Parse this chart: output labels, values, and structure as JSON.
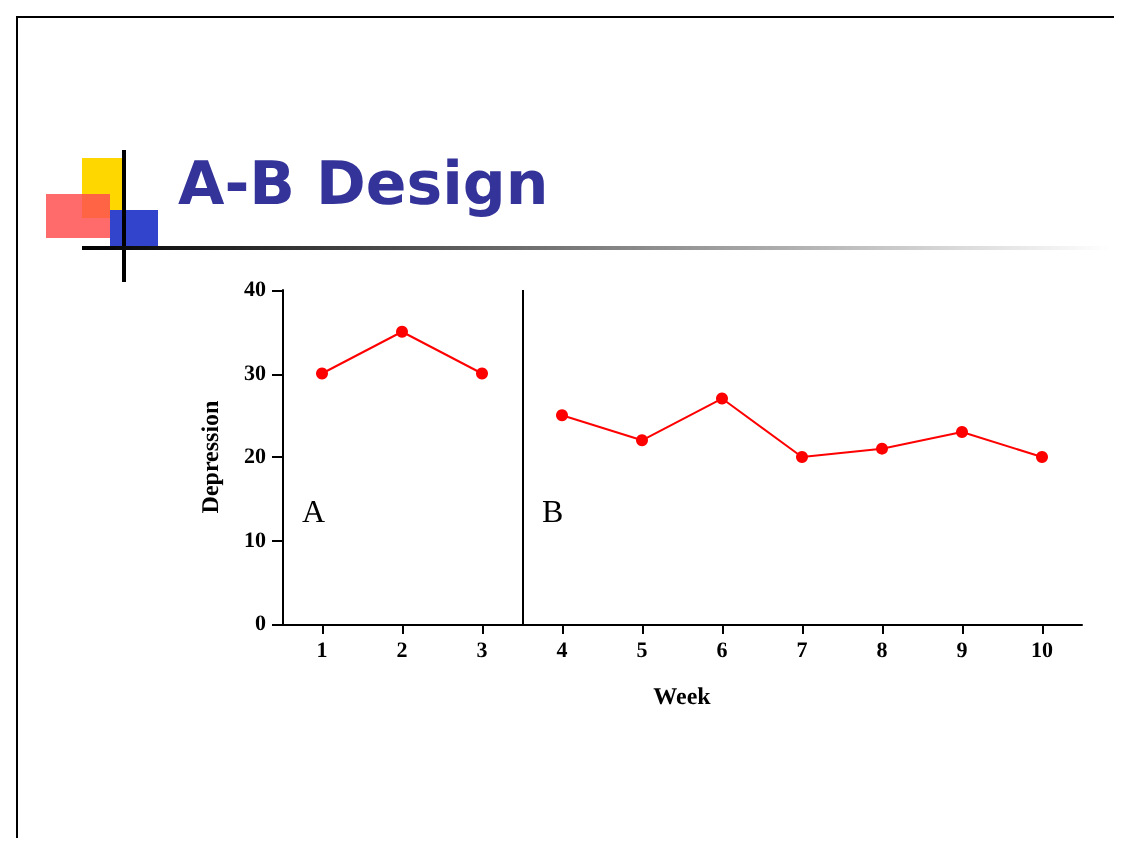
{
  "chart_data": {
    "type": "line",
    "title": "A-B Design",
    "xlabel": "Week",
    "ylabel": "Depression",
    "series": [
      {
        "color": "#ff0000",
        "x": [
          1,
          2,
          3
        ],
        "values": [
          30,
          35,
          30
        ]
      },
      {
        "color": "#ff0000",
        "x": [
          4,
          5,
          6,
          7,
          8,
          9,
          10
        ],
        "values": [
          25,
          22,
          27,
          20,
          21,
          23,
          20
        ]
      }
    ],
    "xlim": [
      0.5,
      10.5
    ],
    "xticks": [
      1,
      2,
      3,
      4,
      5,
      6,
      7,
      8,
      9,
      10
    ],
    "ylim": [
      0,
      40
    ],
    "yticks": [
      0,
      10,
      20,
      30,
      40
    ],
    "ref_lines": [
      {
        "axis": "x",
        "value": 3.5,
        "color": "#000000"
      }
    ],
    "annotations": [
      "A",
      "B"
    ],
    "grid": false,
    "marker": "circle",
    "line_style": "solid"
  }
}
